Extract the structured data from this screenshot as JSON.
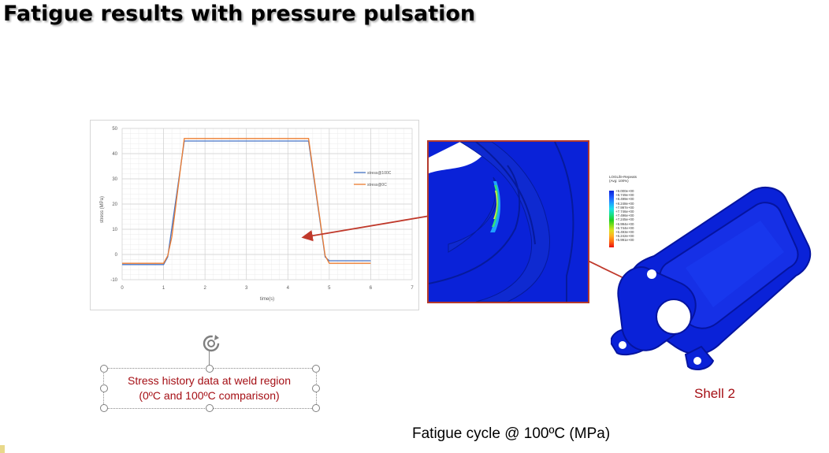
{
  "slide": {
    "title": "Fatigue results with pressure pulsation",
    "caption_bottom": "Fatigue cycle @ 100ºC (MPa)",
    "shell_label": "Shell 2",
    "textbox_line1": "Stress history data at weld region",
    "textbox_line2": "(0ºC and 100ºC comparison)"
  },
  "colors": {
    "title_shadow": "#b0b0b0",
    "callout_red": "#a50f15",
    "arrow_red": "#c0392b",
    "series_100c": "#4472c4",
    "series_0c": "#ed7d31",
    "model_blue": "#0a22d8"
  },
  "contour_legend": {
    "title_line1": "LOGLife-Repeats",
    "title_line2": "(Avg: 100%)",
    "values": [
      "+9.000e+00",
      "+8.749e+00",
      "+8.499e+00",
      "+8.248e+00",
      "+7.997e+00",
      "+7.746e+00",
      "+7.496e+00",
      "+7.245e+00",
      "+6.994e+00",
      "+6.744e+00",
      "+6.493e+00",
      "+6.242e+00",
      "+5.991e+00"
    ]
  },
  "chart_data": {
    "type": "line",
    "title": "",
    "xlabel": "time(s)",
    "ylabel": "stress (MPa)",
    "xlim": [
      0,
      7
    ],
    "ylim": [
      -10,
      50
    ],
    "xticks": [
      0,
      1,
      2,
      3,
      4,
      5,
      6,
      7
    ],
    "yticks": [
      -10,
      0,
      10,
      20,
      30,
      40,
      50
    ],
    "grid": true,
    "legend_position": "right",
    "series": [
      {
        "name": "stress@100C",
        "color": "#4472c4",
        "x": [
          0,
          1,
          1.1,
          1.5,
          4.5,
          4.9,
          5,
          6
        ],
        "y": [
          -4,
          -4,
          -1,
          45,
          45,
          -1,
          -2.5,
          -2.5
        ]
      },
      {
        "name": "stress@0C",
        "color": "#ed7d31",
        "x": [
          0,
          1,
          1.1,
          1.2,
          1.5,
          4.5,
          4.9,
          5,
          6
        ],
        "y": [
          -3.5,
          -3.5,
          -0.5,
          7,
          46,
          46,
          -0.5,
          -3.5,
          -3.5
        ]
      }
    ]
  }
}
